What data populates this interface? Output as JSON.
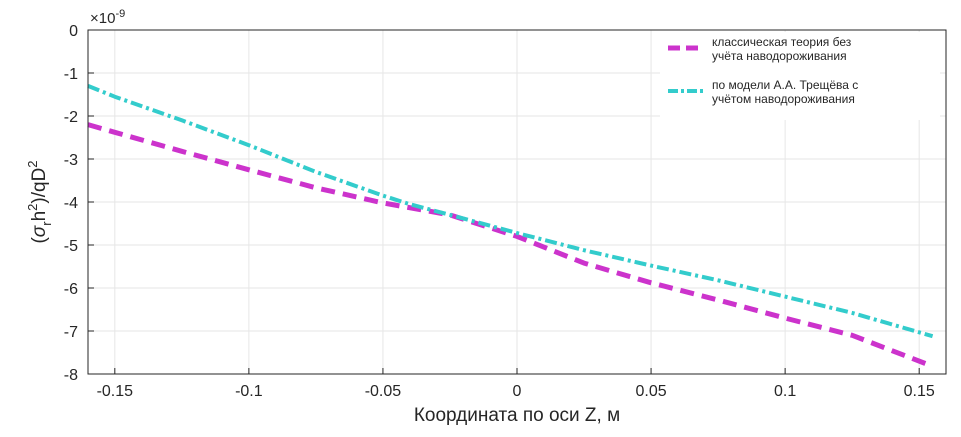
{
  "chart_data": {
    "type": "line",
    "exponent_label": "×10",
    "exponent_power": "-9",
    "xlabel": "Координата по оси Z, м",
    "ylabel": "(σ_r h²)/qD²",
    "xlim": [
      -0.16,
      0.16
    ],
    "ylim": [
      -8,
      0
    ],
    "x_ticks": [
      -0.15,
      -0.1,
      -0.05,
      0,
      0.05,
      0.1,
      0.15
    ],
    "x_tick_labels": [
      "-0.15",
      "-0.1",
      "-0.05",
      "0",
      "0.05",
      "0.1",
      "0.15"
    ],
    "y_ticks": [
      0,
      -1,
      -2,
      -3,
      -4,
      -5,
      -6,
      -7,
      -8
    ],
    "y_tick_labels": [
      "0",
      "-1",
      "-2",
      "-3",
      "-4",
      "-5",
      "-6",
      "-7",
      "-8"
    ],
    "grid": true,
    "legend_position": "top-right",
    "series": [
      {
        "name": "классическая теория без учёта наводороживания",
        "legend_lines": [
          "классическая теория без",
          "учёта наводороживания"
        ],
        "color": "#cc33cc",
        "style": "dashed",
        "x": [
          -0.16,
          -0.15,
          -0.125,
          -0.1,
          -0.075,
          -0.05,
          -0.025,
          0,
          0.025,
          0.05,
          0.075,
          0.1,
          0.125,
          0.155
        ],
        "y": [
          -2.2,
          -2.38,
          -2.82,
          -3.25,
          -3.67,
          -4.02,
          -4.3,
          -4.8,
          -5.42,
          -5.88,
          -6.28,
          -6.7,
          -7.1,
          -7.82
        ]
      },
      {
        "name": "по модели А.А. Трещёва с учётом наводороживания",
        "legend_lines": [
          "по модели А.А. Трещёва с",
          "учётом наводороживания"
        ],
        "color": "#33cccc",
        "style": "dashdot",
        "x": [
          -0.16,
          -0.15,
          -0.125,
          -0.1,
          -0.075,
          -0.05,
          -0.04,
          -0.025,
          0,
          0.025,
          0.05,
          0.075,
          0.1,
          0.125,
          0.155
        ],
        "y": [
          -1.3,
          -1.55,
          -2.1,
          -2.68,
          -3.3,
          -3.85,
          -4.05,
          -4.3,
          -4.72,
          -5.12,
          -5.48,
          -5.82,
          -6.2,
          -6.58,
          -7.12
        ]
      }
    ]
  }
}
